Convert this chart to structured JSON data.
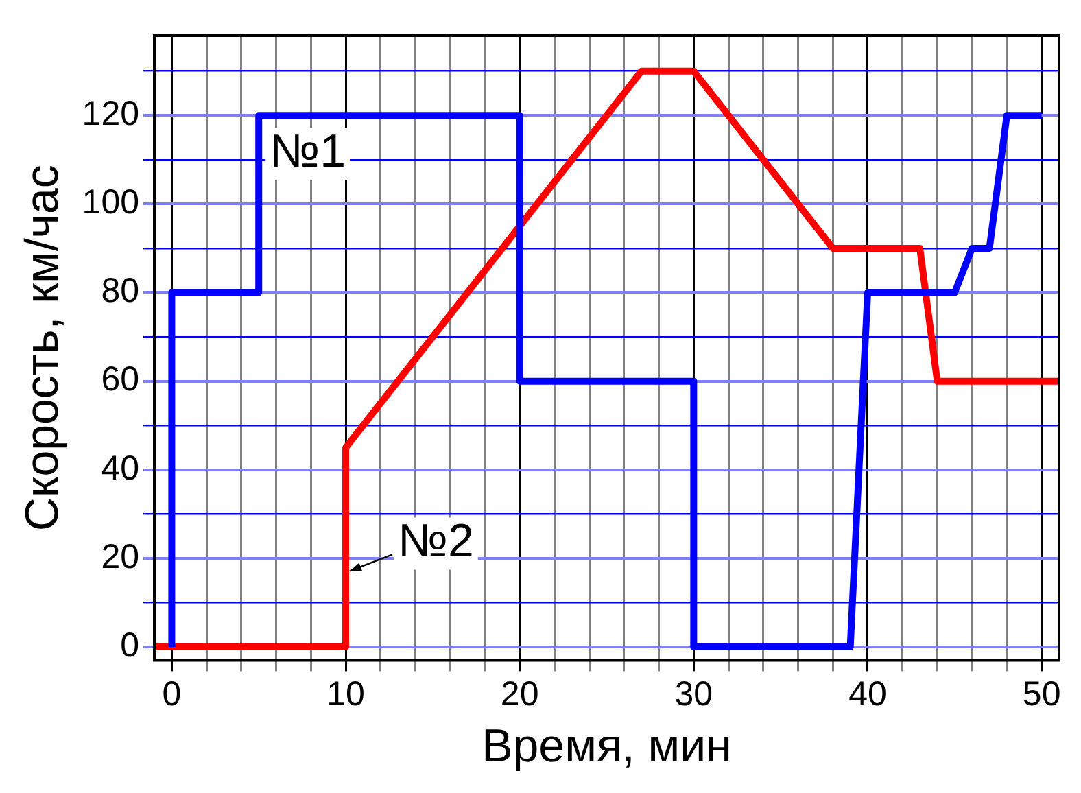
{
  "chart_data": {
    "type": "line",
    "xlabel": "Время, мин",
    "ylabel": "Скорость, км/час",
    "xlim": [
      -1,
      51
    ],
    "ylim": [
      -3,
      138
    ],
    "xticks": [
      0,
      {
        "value": 2,
        "label": null
      },
      {
        "value": 4,
        "label": null
      },
      {
        "value": 6,
        "label": null
      },
      {
        "value": 8,
        "label": null
      },
      10,
      {
        "value": 12,
        "label": null
      },
      {
        "value": 14,
        "label": null
      },
      {
        "value": 16,
        "label": null
      },
      {
        "value": 18,
        "label": null
      },
      20,
      {
        "value": 22,
        "label": null
      },
      {
        "value": 24,
        "label": null
      },
      {
        "value": 26,
        "label": null
      },
      {
        "value": 28,
        "label": null
      },
      30,
      {
        "value": 32,
        "label": null
      },
      {
        "value": 34,
        "label": null
      },
      {
        "value": 36,
        "label": null
      },
      {
        "value": 38,
        "label": null
      },
      40,
      {
        "value": 42,
        "label": null
      },
      {
        "value": 44,
        "label": null
      },
      {
        "value": 46,
        "label": null
      },
      {
        "value": 48,
        "label": null
      },
      50
    ],
    "yticks": [
      0,
      {
        "value": 10,
        "label": null
      },
      20,
      {
        "value": 30,
        "label": null
      },
      40,
      {
        "value": 50,
        "label": null
      },
      60,
      {
        "value": 70,
        "label": null
      },
      80,
      {
        "value": 90,
        "label": null
      },
      100,
      {
        "value": 110,
        "label": null
      },
      120,
      {
        "value": 130,
        "label": null
      }
    ],
    "grid": true,
    "legend": false,
    "marker": "none",
    "line_style": "solid",
    "series": [
      {
        "name": "№1",
        "color": "#0000ff",
        "x": [
          0,
          0,
          5,
          5,
          20,
          20,
          30,
          30,
          39,
          40,
          45,
          46,
          47,
          48,
          50
        ],
        "values": [
          0,
          80,
          80,
          120,
          120,
          60,
          60,
          0,
          0,
          80,
          80,
          90,
          90,
          120,
          120
        ]
      },
      {
        "name": "№2",
        "color": "#ff0000",
        "x": [
          -1,
          10,
          10,
          27,
          30,
          38,
          43,
          44,
          51
        ],
        "values": [
          0,
          0,
          45,
          130,
          130,
          90,
          90,
          60,
          60
        ]
      }
    ]
  }
}
